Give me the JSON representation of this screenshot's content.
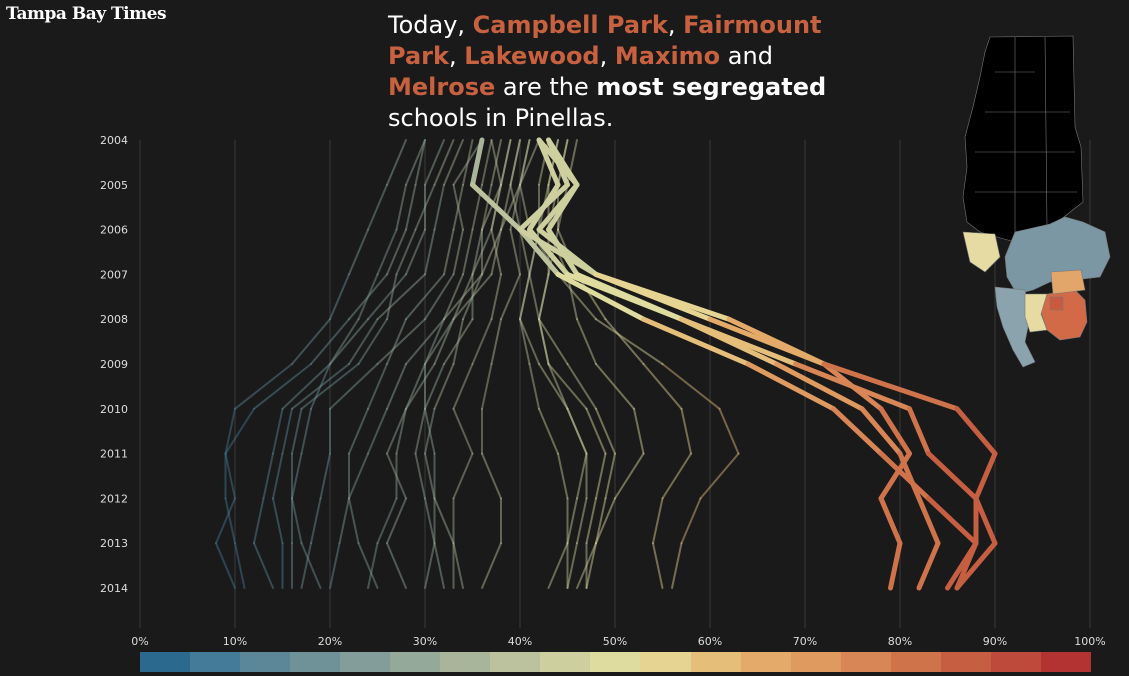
{
  "logo": "Tampa Bay Times",
  "headline": {
    "prefix": "Today, ",
    "schools": [
      "Campbell Park",
      "Fairmount Park",
      "Lakewood",
      "Maximo",
      "Melrose"
    ],
    "seps": [
      ", ",
      ", ",
      ", ",
      " and "
    ],
    "mid": " are the ",
    "emph": "most segregated",
    "suffix": " schools in Pinellas."
  },
  "colors": {
    "background": "#1a1a1a",
    "accent": "#c8613f",
    "grid": "#3a3a3a",
    "scale": [
      "#2b6a8e",
      "#437b98",
      "#5b8799",
      "#6f9299",
      "#839e9a",
      "#95a99a",
      "#a8b59b",
      "#bcc29d",
      "#cdcf9e",
      "#dfdca0",
      "#e6d592",
      "#e5bf79",
      "#e3aa69",
      "#df9a5f",
      "#d88655",
      "#cf734b",
      "#c65e42",
      "#bd4a3a",
      "#b33333"
    ]
  },
  "icons": {
    "map": "pinellas-county-map"
  },
  "chart_data": {
    "type": "line",
    "orientation": "vertical-time",
    "years": [
      "2004",
      "2005",
      "2006",
      "2007",
      "2008",
      "2009",
      "2010",
      "2011",
      "2012",
      "2013",
      "2014"
    ],
    "x_ticks": [
      "0%",
      "10%",
      "20%",
      "30%",
      "40%",
      "50%",
      "60%",
      "70%",
      "80%",
      "90%",
      "100%"
    ],
    "xlim": [
      0,
      100
    ],
    "unit": "%",
    "grid": true,
    "highlighted": [
      {
        "values": [
          42,
          46,
          42,
          48,
          62,
          72,
          78,
          81,
          78,
          80,
          79
        ]
      },
      {
        "values": [
          42,
          44,
          41,
          45,
          57,
          67,
          76,
          80,
          82,
          84,
          82
        ]
      },
      {
        "values": [
          43,
          45,
          40,
          44,
          53,
          64,
          73,
          78,
          83,
          88,
          85
        ]
      },
      {
        "values": [
          43,
          46,
          43,
          46,
          57,
          69,
          81,
          83,
          88,
          90,
          86
        ]
      },
      {
        "values": [
          36,
          35,
          40,
          48,
          60,
          72,
          86,
          90,
          88,
          88,
          86
        ]
      }
    ],
    "background": [
      {
        "values": [
          28,
          26,
          24,
          22,
          20,
          16,
          10,
          9,
          10,
          8,
          10
        ]
      },
      {
        "values": [
          30,
          29,
          28,
          26,
          22,
          18,
          12,
          9,
          9,
          10,
          11
        ]
      },
      {
        "values": [
          32,
          30,
          30,
          28,
          24,
          20,
          15,
          14,
          13,
          12,
          14
        ]
      },
      {
        "values": [
          34,
          32,
          31,
          30,
          25,
          22,
          16,
          15,
          14,
          15,
          15
        ]
      },
      {
        "values": [
          33,
          31,
          29,
          27,
          26,
          23,
          17,
          16,
          16,
          16,
          16
        ]
      },
      {
        "values": [
          30,
          28,
          27,
          25,
          23,
          20,
          18,
          17,
          16,
          17,
          19
        ]
      },
      {
        "values": [
          36,
          33,
          34,
          33,
          30,
          25,
          20,
          20,
          19,
          18,
          17
        ]
      },
      {
        "values": [
          35,
          34,
          33,
          32,
          28,
          26,
          24,
          22,
          22,
          21,
          20
        ]
      },
      {
        "values": [
          37,
          36,
          35,
          34,
          32,
          28,
          26,
          24,
          22,
          23,
          25
        ]
      },
      {
        "values": [
          38,
          37,
          36,
          35,
          33,
          31,
          28,
          27,
          27,
          25,
          24
        ]
      },
      {
        "values": [
          40,
          39,
          38,
          37,
          33,
          30,
          28,
          26,
          28,
          26,
          28
        ]
      },
      {
        "values": [
          39,
          38,
          37,
          35,
          35,
          32,
          30,
          29,
          30,
          31,
          30
        ]
      },
      {
        "values": [
          41,
          40,
          38,
          36,
          34,
          33,
          31,
          30,
          31,
          33,
          33
        ]
      },
      {
        "values": [
          37,
          38,
          36,
          36,
          32,
          30,
          30,
          31,
          31,
          31,
          32
        ]
      },
      {
        "values": [
          39,
          38,
          37,
          38,
          37,
          35,
          33,
          35,
          33,
          33,
          34
        ]
      },
      {
        "values": [
          42,
          40,
          39,
          40,
          38,
          37,
          36,
          36,
          38,
          38,
          36
        ]
      },
      {
        "values": [
          44,
          43,
          42,
          41,
          40,
          41,
          42,
          44,
          45,
          45,
          43
        ]
      },
      {
        "values": [
          45,
          44,
          43,
          43,
          42,
          43,
          45,
          47,
          47,
          46,
          45
        ]
      },
      {
        "values": [
          46,
          45,
          44,
          43,
          42,
          43,
          47,
          49,
          48,
          47,
          47
        ]
      },
      {
        "values": [
          43,
          42,
          42,
          41,
          40,
          42,
          45,
          47,
          46,
          45,
          45
        ]
      },
      {
        "values": [
          44,
          43,
          43,
          45,
          46,
          48,
          52,
          53,
          50,
          48,
          47
        ]
      },
      {
        "values": [
          45,
          44,
          44,
          46,
          49,
          53,
          57,
          58,
          55,
          54,
          55
        ]
      },
      {
        "values": [
          41,
          40,
          41,
          44,
          48,
          55,
          61,
          63,
          59,
          57,
          56
        ]
      },
      {
        "values": [
          40,
          39,
          40,
          41,
          42,
          45,
          48,
          50,
          49,
          48,
          46
        ]
      }
    ]
  }
}
